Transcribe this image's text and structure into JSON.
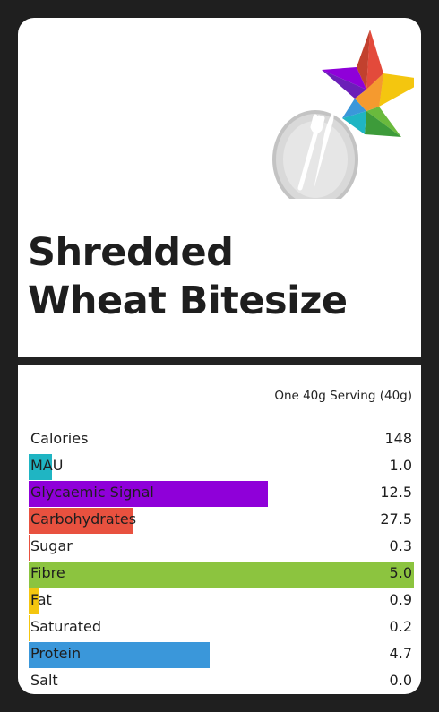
{
  "title_line1": "Shredded",
  "title_line2": "Wheat Bitesize",
  "serving": "One 40g Serving (40g)",
  "nutrients": [
    {
      "label": "Calories",
      "value": "148",
      "level": 0,
      "color": ""
    },
    {
      "label": "MAU",
      "value": "1.0",
      "level": 0.06,
      "color": "#1fb5c3"
    },
    {
      "label": "Glycaemic Signal",
      "value": "12.5",
      "level": 0.62,
      "color": "#8f00d9"
    },
    {
      "label": "Carbohydrates",
      "value": "27.5",
      "level": 0.27,
      "color": "#e8513f"
    },
    {
      "label": "Sugar",
      "value": "0.3",
      "level": 0.004,
      "color": "#e8513f"
    },
    {
      "label": "Fibre",
      "value": "5.0",
      "level": 1.0,
      "color": "#8cc43f"
    },
    {
      "label": "Fat",
      "value": "0.9",
      "level": 0.025,
      "color": "#f4c60f"
    },
    {
      "label": "Saturated",
      "value": "0.2",
      "level": 0.004,
      "color": "#f4c60f"
    },
    {
      "label": "Protein",
      "value": "4.7",
      "level": 0.47,
      "color": "#3a97da"
    },
    {
      "label": "Salt",
      "value": "0.0",
      "level": 0,
      "color": ""
    }
  ],
  "icons": {
    "logo": "star-plate-fork-knife-logo"
  }
}
